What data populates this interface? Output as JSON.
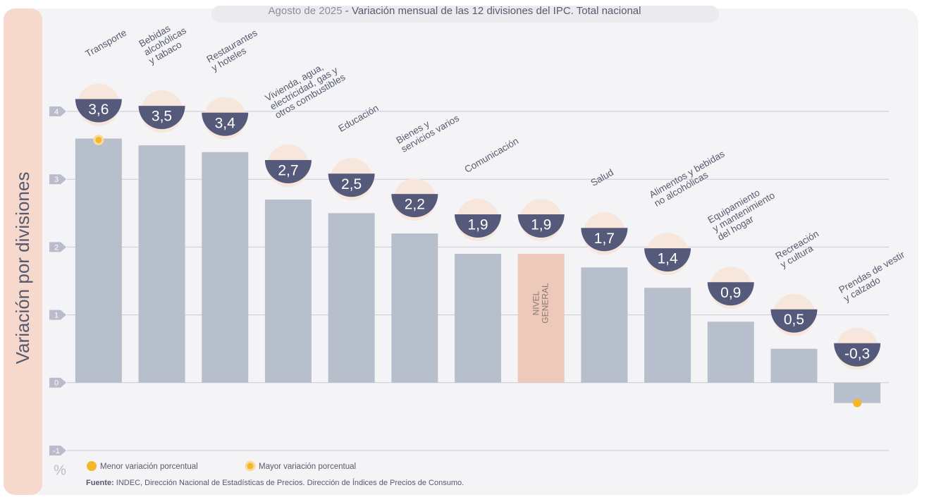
{
  "chart_data": {
    "type": "bar",
    "title": [
      "Agosto de 2025",
      "- Variación mensual de las 12 divisiones del IPC. Total nacional"
    ],
    "y_label": "Variación por divisiones",
    "unit_label": "%",
    "categories": [
      "Transporte",
      "Bebidas\nalcohólicas\ny tabaco",
      "Restaurantes\ny hoteles",
      "Vivienda, agua,\nelectricidad, gas y\notros combustibles",
      "Educación",
      "Bienes y\nservicios varios",
      "Comunicación",
      "NIVEL\nGENERAL",
      "Salud",
      "Alimentos y bebidas\nno alcohólicas",
      "Equipamiento\ny mantenimiento\ndel hogar",
      "Recreación\ny cultura",
      "Prendas de vestir\ny calzado"
    ],
    "values": [
      3.6,
      3.5,
      3.4,
      2.7,
      2.5,
      2.2,
      1.9,
      1.9,
      1.7,
      1.4,
      0.9,
      0.5,
      -0.3
    ],
    "value_labels": [
      "3,6",
      "3,5",
      "3,4",
      "2,7",
      "2,5",
      "2,2",
      "1,9",
      "1,9",
      "1,7",
      "1,4",
      "0,9",
      "0,5",
      "-0,3"
    ],
    "colors": [
      "#b8bfcc",
      "#b8bfcc",
      "#b8bfcc",
      "#b8bfcc",
      "#b8bfcc",
      "#b8bfcc",
      "#b8bfcc",
      "#ecc9b8",
      "#b8bfcc",
      "#b8bfcc",
      "#b8bfcc",
      "#b8bfcc",
      "#b8bfcc"
    ],
    "inside_label_index": 7,
    "ylim": [
      -1,
      4
    ],
    "yticks": [
      -1,
      0,
      1,
      2,
      3,
      4
    ],
    "grid": true,
    "legend": [
      {
        "name": "Menor variación porcentual",
        "index": 12
      },
      {
        "name": "Mayor variación porcentual",
        "index": 0
      }
    ],
    "source": [
      "Fuente:",
      "INDEC, Dirección Nacional de Estadísticas de Precios. Dirección de Índices de Precios de Consumo."
    ]
  }
}
